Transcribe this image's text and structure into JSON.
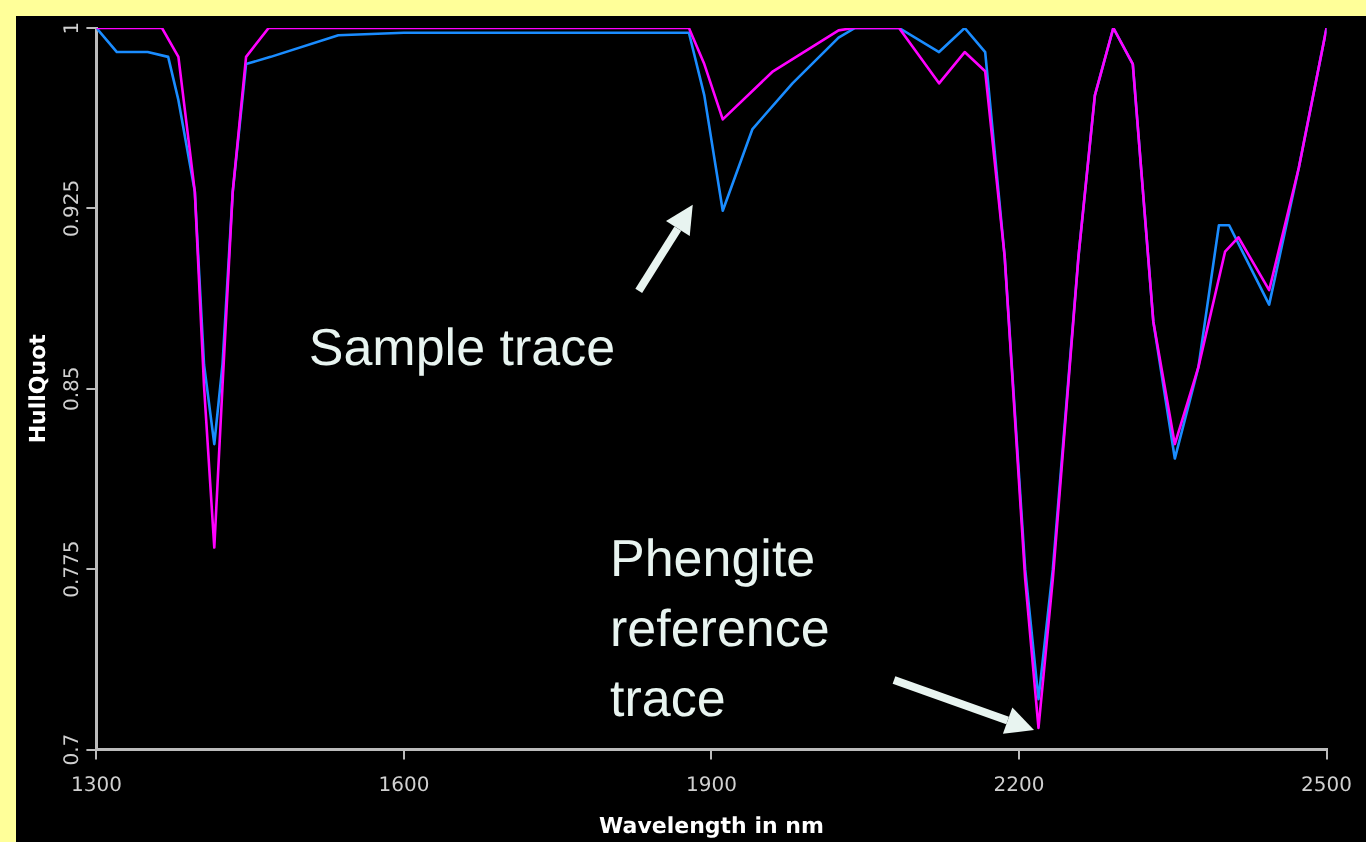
{
  "chart_data": {
    "type": "line",
    "xlabel": "Wavelength in nm",
    "ylabel": "HullQuot",
    "xlim": [
      1300,
      2500
    ],
    "xticks": [
      1300,
      1600,
      1900,
      2200,
      2500
    ],
    "ylim": [
      0.7,
      1
    ],
    "yticks": [
      0.7,
      0.775,
      0.85,
      0.925,
      1
    ],
    "grid": false,
    "legend": false,
    "marker": "none",
    "line_style": "solid",
    "annotations": [
      {
        "text": "Sample trace",
        "x": 1911,
        "y": 0.924
      },
      "Phengite reference trace"
    ],
    "series": [
      {
        "color": "#ff00ff",
        "x": [
          1300,
          1364,
          1380,
          1396,
          1405,
          1415,
          1423,
          1433,
          1446,
          1468,
          1600,
          1878,
          1893,
          1911,
          1960,
          2024,
          2038,
          2083,
          2122,
          2147,
          2167,
          2186,
          2206,
          2219,
          2233,
          2258,
          2274,
          2292,
          2311,
          2331,
          2352,
          2375,
          2401,
          2414,
          2444,
          2473,
          2500
        ],
        "values": [
          1,
          1,
          0.988,
          0.932,
          0.851,
          0.784,
          0.851,
          0.932,
          0.988,
          1,
          1,
          1,
          0.985,
          0.962,
          0.982,
          0.999,
          1,
          1,
          0.977,
          0.99,
          0.982,
          0.905,
          0.771,
          0.709,
          0.771,
          0.905,
          0.972,
          1,
          0.985,
          0.878,
          0.827,
          0.859,
          0.907,
          0.913,
          0.891,
          0.942,
          1
        ]
      },
      {
        "color": "#1a8cff",
        "x": [
          1300,
          1320,
          1350,
          1370,
          1380,
          1396,
          1405,
          1415,
          1423,
          1433,
          1446,
          1470,
          1536,
          1600,
          1878,
          1893,
          1911,
          1940,
          1979,
          2024,
          2040,
          2083,
          2122,
          2147,
          2167,
          2186,
          2206,
          2219,
          2233,
          2258,
          2274,
          2292,
          2311,
          2331,
          2352,
          2375,
          2395,
          2405,
          2444,
          2473,
          2500
        ],
        "values": [
          1,
          0.99,
          0.99,
          0.988,
          0.97,
          0.932,
          0.86,
          0.827,
          0.86,
          0.932,
          0.985,
          0.988,
          0.997,
          0.998,
          0.998,
          0.972,
          0.924,
          0.958,
          0.977,
          0.996,
          1,
          1,
          0.99,
          1,
          0.99,
          0.905,
          0.775,
          0.721,
          0.775,
          0.905,
          0.972,
          1,
          0.985,
          0.878,
          0.821,
          0.859,
          0.918,
          0.918,
          0.885,
          0.942,
          1
        ]
      }
    ]
  }
}
